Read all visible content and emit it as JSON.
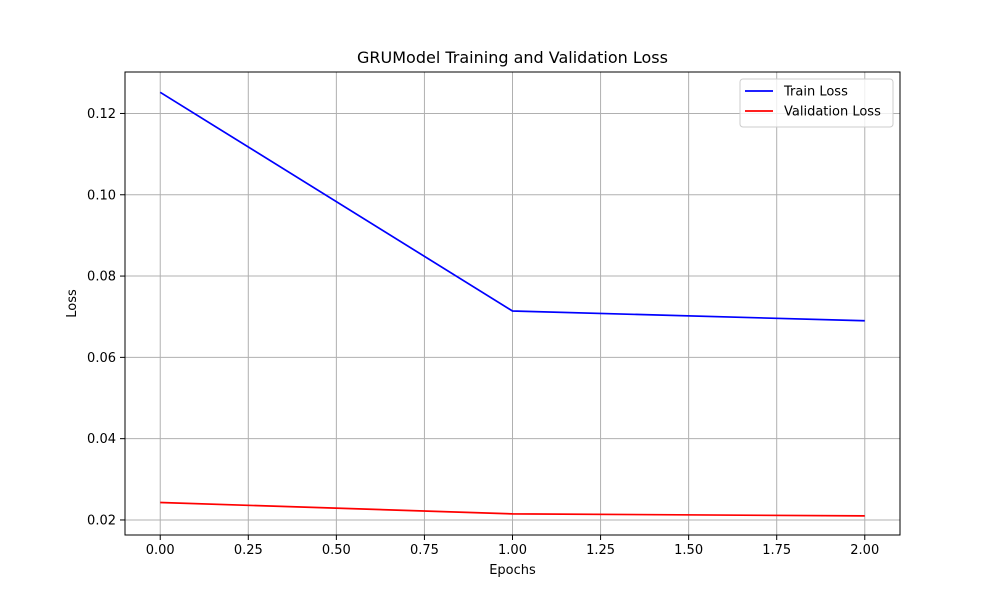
{
  "chart_data": {
    "type": "line",
    "title": "GRUModel Training and Validation Loss",
    "xlabel": "Epochs",
    "ylabel": "Loss",
    "xlim": [
      -0.1,
      2.1
    ],
    "ylim": [
      0.0163,
      0.1302
    ],
    "xticks": [
      0.0,
      0.25,
      0.5,
      0.75,
      1.0,
      1.25,
      1.5,
      1.75,
      2.0
    ],
    "xtick_labels": [
      "0.00",
      "0.25",
      "0.50",
      "0.75",
      "1.00",
      "1.25",
      "1.50",
      "1.75",
      "2.00"
    ],
    "yticks": [
      0.02,
      0.04,
      0.06,
      0.08,
      0.1,
      0.12
    ],
    "ytick_labels": [
      "0.02",
      "0.04",
      "0.06",
      "0.08",
      "0.10",
      "0.12"
    ],
    "grid": true,
    "legend_position": "top-right",
    "x": [
      0,
      1,
      2
    ],
    "series": [
      {
        "name": "Train Loss",
        "color": "#0000ff",
        "values": [
          0.1252,
          0.0714,
          0.069
        ]
      },
      {
        "name": "Validation Loss",
        "color": "#ff0000",
        "values": [
          0.0243,
          0.0215,
          0.021
        ]
      }
    ]
  }
}
